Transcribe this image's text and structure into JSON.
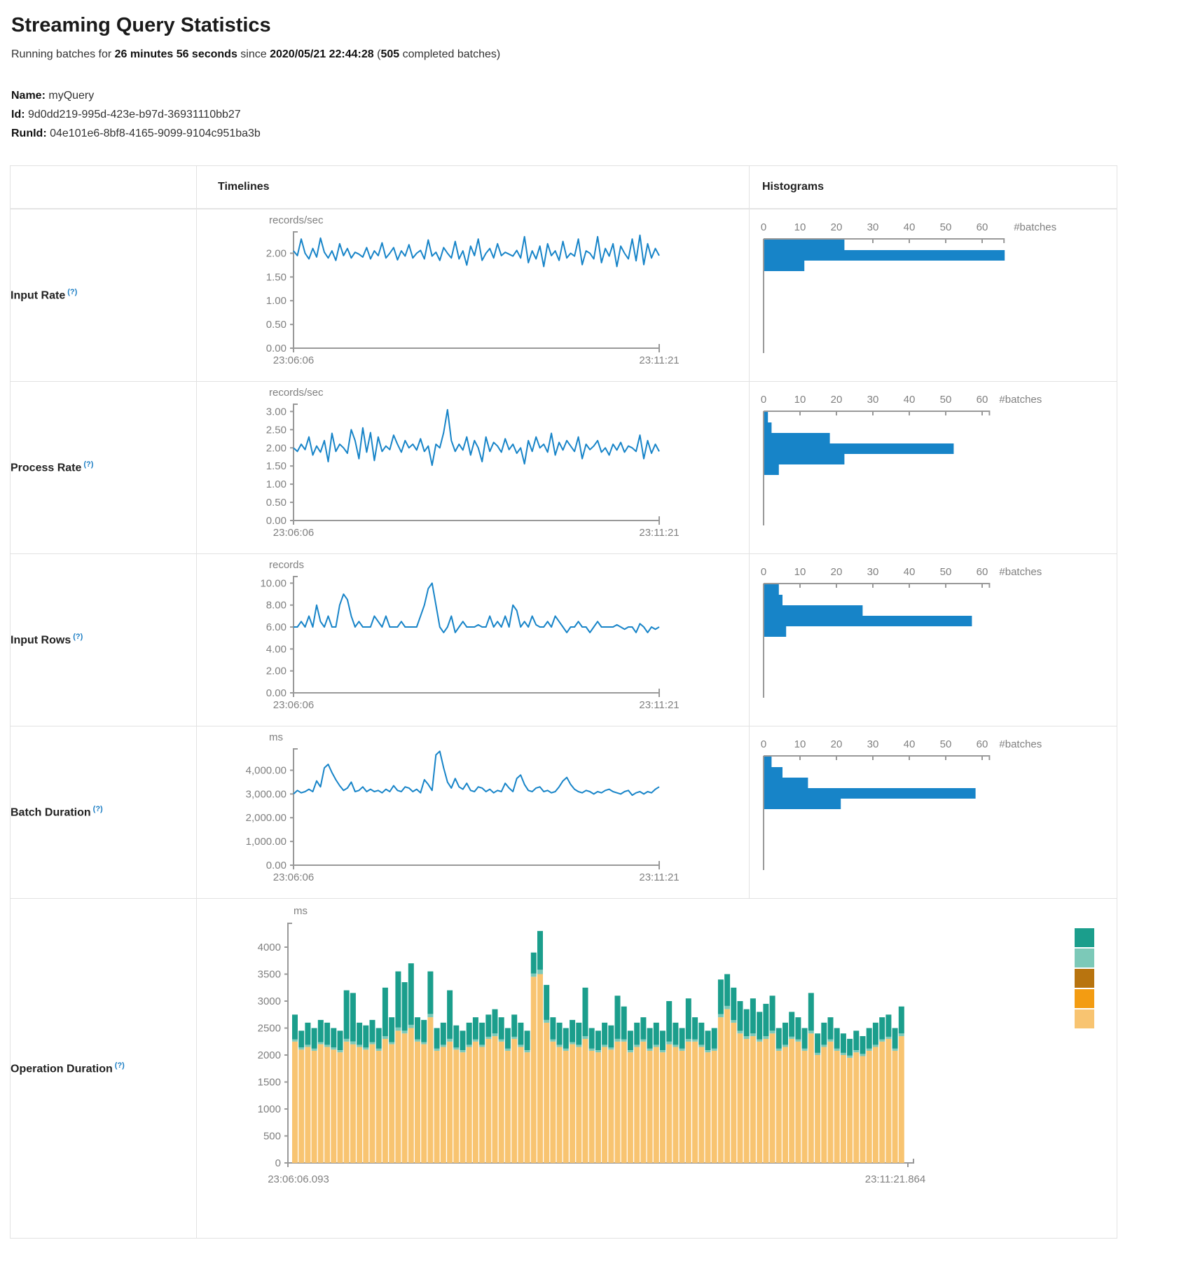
{
  "page": {
    "title": "Streaming Query Statistics",
    "subtitle_prefix": "Running batches for ",
    "duration": "26 minutes 56 seconds",
    "since_text": " since ",
    "start_time": "2020/05/21 22:44:28",
    "paren_open": " (",
    "completed_batches": "505",
    "batches_suffix": " completed batches)",
    "name_label": "Name:",
    "name_value": "myQuery",
    "id_label": "Id:",
    "id_value": "9d0dd219-995d-423e-b97d-36931110bb27",
    "runid_label": "RunId:",
    "runid_value": "04e101e6-8bf8-4165-9099-9104c951ba3b"
  },
  "table": {
    "col_timelines": "Timelines",
    "col_histograms": "Histograms"
  },
  "colors": {
    "line": "#1784c8",
    "bar": "#1784c8",
    "axis": "#999999",
    "tick_text": "#808080",
    "help": "#1a7dc4",
    "teal": "#1b9e8c",
    "teal_light": "#7cc9b8",
    "brown": "#b8740f",
    "orange": "#f39c12",
    "tan": "#f8c471"
  },
  "chart_data": [
    {
      "type": "line",
      "row_label": "Input Rate",
      "help": "(?)",
      "unit": "records/sec",
      "x_start": "23:06:06",
      "x_end": "23:11:21",
      "ymax": 2.45,
      "yticks": [
        {
          "v": 2,
          "l": "2.00"
        },
        {
          "v": 1.5,
          "l": "1.50"
        },
        {
          "v": 1,
          "l": "1.00"
        },
        {
          "v": 0.5,
          "l": "0.50"
        },
        {
          "v": 0,
          "l": "0.00"
        }
      ],
      "values": [
        2.05,
        1.95,
        2.3,
        2.0,
        1.88,
        2.1,
        1.92,
        2.32,
        2.02,
        1.9,
        2.05,
        1.85,
        2.2,
        1.95,
        2.1,
        1.9,
        2.02,
        1.98,
        1.92,
        2.12,
        1.88,
        2.05,
        1.95,
        2.22,
        1.9,
        2.0,
        2.12,
        1.86,
        2.05,
        1.94,
        2.18,
        1.9,
        2.0,
        2.06,
        1.88,
        2.28,
        1.94,
        2.02,
        1.85,
        2.12,
        2.0,
        1.9,
        2.25,
        1.88,
        2.05,
        1.75,
        2.15,
        1.95,
        2.3,
        1.85,
        2.0,
        2.1,
        1.9,
        2.2,
        1.95,
        2.02,
        1.98,
        1.94,
        2.06,
        1.9,
        2.35,
        1.8,
        2.05,
        1.88,
        2.15,
        1.72,
        2.2,
        1.95,
        2.05,
        1.85,
        2.25,
        1.9,
        2.0,
        1.94,
        2.3,
        1.76,
        2.05,
        2.0,
        1.88,
        2.35,
        1.8,
        2.1,
        1.94,
        2.2,
        1.72,
        2.15,
        2.0,
        1.88,
        2.3,
        1.84,
        2.38,
        1.76,
        2.2,
        1.9,
        2.1,
        1.95
      ],
      "histogram": {
        "axis_label": "#batches",
        "ticks": [
          0,
          10,
          20,
          30,
          40,
          50,
          60
        ],
        "bins": [
          22,
          66,
          11
        ]
      }
    },
    {
      "type": "line",
      "row_label": "Process Rate",
      "help": "(?)",
      "unit": "records/sec",
      "x_start": "23:06:06",
      "x_end": "23:11:21",
      "ymax": 3.2,
      "yticks": [
        {
          "v": 3,
          "l": "3.00"
        },
        {
          "v": 2.5,
          "l": "2.50"
        },
        {
          "v": 2,
          "l": "2.00"
        },
        {
          "v": 1.5,
          "l": "1.50"
        },
        {
          "v": 1,
          "l": "1.00"
        },
        {
          "v": 0.5,
          "l": "0.50"
        },
        {
          "v": 0,
          "l": "0.00"
        }
      ],
      "values": [
        2.0,
        1.9,
        2.1,
        1.95,
        2.3,
        1.8,
        2.05,
        1.88,
        2.2,
        1.62,
        2.4,
        1.9,
        2.1,
        2.0,
        1.85,
        2.5,
        2.2,
        1.7,
        2.55,
        1.88,
        2.42,
        1.65,
        2.3,
        1.9,
        2.05,
        1.95,
        2.35,
        2.1,
        1.88,
        2.2,
        2.0,
        2.1,
        1.94,
        2.25,
        1.9,
        2.05,
        1.52,
        2.1,
        2.0,
        2.42,
        3.05,
        2.2,
        1.9,
        2.1,
        1.94,
        2.3,
        1.8,
        2.2,
        2.0,
        1.62,
        2.3,
        1.9,
        2.15,
        2.05,
        1.88,
        2.25,
        1.95,
        2.1,
        1.85,
        2.0,
        1.56,
        2.2,
        1.9,
        2.3,
        2.0,
        2.1,
        1.88,
        2.4,
        1.8,
        2.15,
        1.94,
        2.2,
        2.05,
        1.9,
        2.3,
        1.7,
        2.1,
        1.95,
        2.05,
        2.2,
        1.88,
        2.0,
        1.8,
        2.1,
        1.94,
        2.15,
        1.88,
        2.05,
        2.0,
        1.9,
        2.35,
        1.7,
        2.2,
        1.85,
        2.1,
        1.9
      ],
      "histogram": {
        "axis_label": "#batches",
        "ticks": [
          0,
          10,
          20,
          30,
          40,
          50,
          60
        ],
        "bins": [
          1,
          2,
          18,
          52,
          22,
          4
        ]
      }
    },
    {
      "type": "line",
      "row_label": "Input Rows",
      "help": "(?)",
      "unit": "records",
      "x_start": "23:06:06",
      "x_end": "23:11:21",
      "ymax": 10.6,
      "yticks": [
        {
          "v": 10,
          "l": "10.00"
        },
        {
          "v": 8,
          "l": "8.00"
        },
        {
          "v": 6,
          "l": "6.00"
        },
        {
          "v": 4,
          "l": "4.00"
        },
        {
          "v": 2,
          "l": "2.00"
        },
        {
          "v": 0,
          "l": "0.00"
        }
      ],
      "values": [
        6,
        6,
        6.5,
        6,
        7,
        6,
        8,
        6.5,
        6,
        7,
        6,
        6,
        8,
        9,
        8.5,
        7,
        6,
        6.5,
        6,
        6,
        6,
        7,
        6.5,
        6,
        7,
        6,
        6,
        6,
        6.5,
        6,
        6,
        6,
        6,
        7,
        8,
        9.5,
        10,
        8,
        6,
        5.5,
        6,
        7,
        5.5,
        6,
        6.5,
        6,
        6,
        6,
        6.2,
        6,
        6,
        7,
        6,
        6.5,
        6,
        7,
        6,
        8,
        7.5,
        6,
        6.5,
        6,
        7,
        6.2,
        6,
        6,
        6.5,
        6,
        7,
        6.5,
        6,
        5.5,
        6,
        6,
        6.5,
        6,
        6,
        5.5,
        6,
        6.5,
        6,
        6,
        6,
        6,
        6.2,
        6,
        5.8,
        6,
        6,
        5.5,
        6.3,
        6,
        5.5,
        6,
        5.8,
        6
      ],
      "histogram": {
        "axis_label": "#batches",
        "ticks": [
          0,
          10,
          20,
          30,
          40,
          50,
          60
        ],
        "bins": [
          4,
          5,
          27,
          57,
          6
        ]
      }
    },
    {
      "type": "line",
      "row_label": "Batch Duration",
      "help": "(?)",
      "unit": "ms",
      "x_start": "23:06:06",
      "x_end": "23:11:21",
      "ymax": 4900,
      "yticks": [
        {
          "v": 4000,
          "l": "4,000.00"
        },
        {
          "v": 3000,
          "l": "3,000.00"
        },
        {
          "v": 2000,
          "l": "2,000.00"
        },
        {
          "v": 1000,
          "l": "1,000.00"
        },
        {
          "v": 0,
          "l": "0.00"
        }
      ],
      "values": [
        3000,
        3150,
        3050,
        3100,
        3200,
        3100,
        3550,
        3300,
        4100,
        4250,
        3900,
        3600,
        3350,
        3150,
        3250,
        3500,
        3100,
        3150,
        3300,
        3100,
        3200,
        3100,
        3150,
        3050,
        3200,
        3100,
        3350,
        3150,
        3100,
        3300,
        3250,
        3100,
        3200,
        3050,
        3600,
        3400,
        3150,
        4650,
        4800,
        4100,
        3500,
        3250,
        3650,
        3300,
        3200,
        3450,
        3150,
        3100,
        3300,
        3250,
        3100,
        3200,
        3050,
        3150,
        3100,
        3450,
        3250,
        3100,
        3650,
        3800,
        3400,
        3150,
        3100,
        3250,
        3300,
        3100,
        3150,
        3050,
        3100,
        3300,
        3550,
        3700,
        3400,
        3200,
        3100,
        3050,
        3150,
        3100,
        3000,
        3100,
        3050,
        3150,
        3200,
        3100,
        3050,
        3000,
        3100,
        3150,
        2950,
        3050,
        3100,
        3000,
        3100,
        3050,
        3200,
        3300
      ],
      "histogram": {
        "axis_label": "#batches",
        "ticks": [
          0,
          10,
          20,
          30,
          40,
          50,
          60
        ],
        "bins": [
          2,
          5,
          12,
          58,
          21
        ]
      }
    },
    {
      "type": "stacked-bar",
      "row_label": "Operation Duration",
      "help": "(?)",
      "unit": "ms",
      "x_start": "23:06:06.093",
      "x_end": "23:11:21.864",
      "ymax": 4400,
      "yticks": [
        {
          "v": 4000,
          "l": "4000"
        },
        {
          "v": 3500,
          "l": "3500"
        },
        {
          "v": 3000,
          "l": "3000"
        },
        {
          "v": 2500,
          "l": "2500"
        },
        {
          "v": 2000,
          "l": "2000"
        },
        {
          "v": 1500,
          "l": "1500"
        },
        {
          "v": 1000,
          "l": "1000"
        },
        {
          "v": 500,
          "l": "500"
        },
        {
          "v": 0,
          "l": "0"
        }
      ],
      "segment_colors_bottom_up": [
        "#f8c471",
        "#7cc9b8",
        "#1b9e8c"
      ],
      "legend_colors": [
        "#1b9e8c",
        "#7cc9b8",
        "#b8740f",
        "#f39c12",
        "#f8c471"
      ],
      "bars": [
        [
          2250,
          40,
          460
        ],
        [
          2100,
          40,
          310
        ],
        [
          2150,
          40,
          410
        ],
        [
          2080,
          40,
          380
        ],
        [
          2200,
          40,
          410
        ],
        [
          2150,
          40,
          410
        ],
        [
          2100,
          40,
          360
        ],
        [
          2050,
          40,
          360
        ],
        [
          2250,
          50,
          900
        ],
        [
          2200,
          50,
          900
        ],
        [
          2150,
          40,
          410
        ],
        [
          2100,
          40,
          410
        ],
        [
          2200,
          40,
          410
        ],
        [
          2080,
          40,
          380
        ],
        [
          2300,
          50,
          900
        ],
        [
          2200,
          40,
          460
        ],
        [
          2450,
          60,
          1040
        ],
        [
          2400,
          50,
          900
        ],
        [
          2500,
          60,
          1140
        ],
        [
          2250,
          40,
          410
        ],
        [
          2200,
          40,
          410
        ],
        [
          2700,
          60,
          790
        ],
        [
          2080,
          40,
          380
        ],
        [
          2150,
          40,
          410
        ],
        [
          2250,
          50,
          900
        ],
        [
          2100,
          40,
          410
        ],
        [
          2050,
          40,
          360
        ],
        [
          2150,
          40,
          410
        ],
        [
          2250,
          40,
          410
        ],
        [
          2150,
          40,
          410
        ],
        [
          2300,
          40,
          410
        ],
        [
          2350,
          50,
          450
        ],
        [
          2250,
          40,
          410
        ],
        [
          2080,
          40,
          380
        ],
        [
          2300,
          40,
          410
        ],
        [
          2150,
          40,
          410
        ],
        [
          2050,
          40,
          360
        ],
        [
          3450,
          60,
          390
        ],
        [
          3500,
          80,
          720
        ],
        [
          2600,
          50,
          650
        ],
        [
          2250,
          40,
          410
        ],
        [
          2150,
          40,
          410
        ],
        [
          2080,
          40,
          380
        ],
        [
          2200,
          40,
          410
        ],
        [
          2150,
          40,
          410
        ],
        [
          2300,
          50,
          900
        ],
        [
          2080,
          40,
          380
        ],
        [
          2050,
          40,
          360
        ],
        [
          2150,
          40,
          410
        ],
        [
          2100,
          40,
          410
        ],
        [
          2250,
          50,
          800
        ],
        [
          2250,
          40,
          610
        ],
        [
          2050,
          40,
          360
        ],
        [
          2150,
          40,
          410
        ],
        [
          2250,
          40,
          410
        ],
        [
          2080,
          40,
          380
        ],
        [
          2150,
          40,
          410
        ],
        [
          2050,
          40,
          360
        ],
        [
          2200,
          50,
          750
        ],
        [
          2150,
          40,
          410
        ],
        [
          2080,
          40,
          380
        ],
        [
          2250,
          50,
          750
        ],
        [
          2250,
          40,
          410
        ],
        [
          2150,
          40,
          410
        ],
        [
          2050,
          40,
          360
        ],
        [
          2080,
          40,
          380
        ],
        [
          2700,
          60,
          640
        ],
        [
          2850,
          60,
          590
        ],
        [
          2600,
          50,
          600
        ],
        [
          2400,
          50,
          550
        ],
        [
          2300,
          50,
          500
        ],
        [
          2350,
          50,
          650
        ],
        [
          2250,
          40,
          510
        ],
        [
          2300,
          50,
          600
        ],
        [
          2400,
          50,
          650
        ],
        [
          2080,
          40,
          380
        ],
        [
          2150,
          40,
          410
        ],
        [
          2300,
          40,
          460
        ],
        [
          2250,
          40,
          410
        ],
        [
          2080,
          40,
          380
        ],
        [
          2400,
          50,
          700
        ],
        [
          2000,
          40,
          360
        ],
        [
          2150,
          40,
          410
        ],
        [
          2250,
          40,
          410
        ],
        [
          2080,
          40,
          380
        ],
        [
          2000,
          40,
          360
        ],
        [
          1950,
          40,
          310
        ],
        [
          2050,
          40,
          360
        ],
        [
          1980,
          40,
          330
        ],
        [
          2080,
          40,
          380
        ],
        [
          2150,
          40,
          410
        ],
        [
          2250,
          40,
          410
        ],
        [
          2300,
          40,
          410
        ],
        [
          2080,
          40,
          380
        ],
        [
          2350,
          50,
          500
        ]
      ]
    }
  ]
}
